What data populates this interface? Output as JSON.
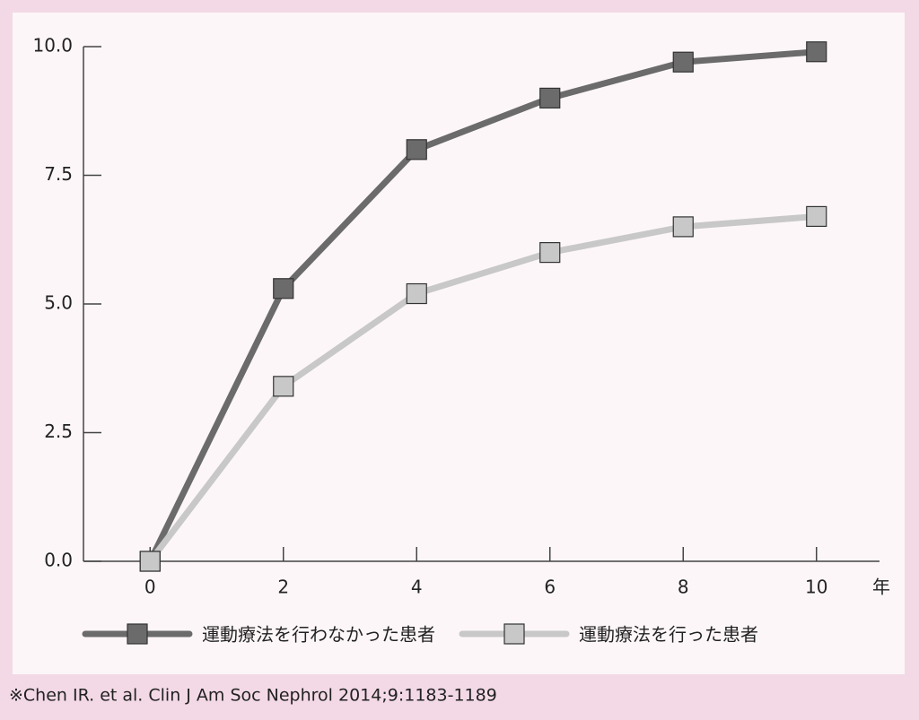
{
  "chart_data": {
    "type": "line",
    "x": [
      0,
      2,
      4,
      6,
      8,
      10
    ],
    "series": [
      {
        "name": "運動療法を行わなかった患者",
        "color": "#6b6b6b",
        "values": [
          0,
          5.3,
          8.0,
          9.0,
          9.7,
          9.9
        ]
      },
      {
        "name": "運動療法を行った患者",
        "color": "#c8c8c8",
        "values": [
          0,
          3.4,
          5.2,
          6.0,
          6.5,
          6.7
        ]
      }
    ],
    "xlabel": "年",
    "xlim": [
      -1,
      11
    ],
    "xticks": [
      0,
      2,
      4,
      6,
      8,
      10
    ],
    "ylim": [
      0,
      10
    ],
    "yticks": [
      {
        "value": 0,
        "label": "0.0"
      },
      2.5,
      {
        "value": 5,
        "label": "5.0"
      },
      7.5,
      {
        "value": 10,
        "label": "10.0"
      }
    ],
    "legend": "bottom",
    "footnote": "※Chen IR. et al. Clin J Am Soc Nephrol 2014;9:1183-1189"
  }
}
